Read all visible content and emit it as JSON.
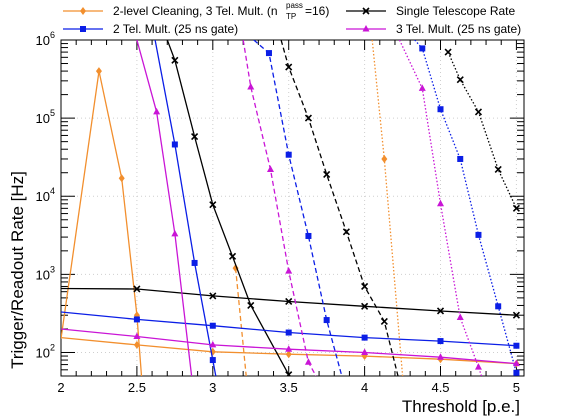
{
  "chart_data": {
    "type": "line",
    "title": "",
    "xlabel": "Threshold [p.e.]",
    "ylabel": "Trigger/Readout Rate [Hz]",
    "xlim": [
      2,
      5.05
    ],
    "ylim": [
      50,
      1000000
    ],
    "yscale": "log",
    "grid": true,
    "legend_position": "top",
    "x_tick_labels": [
      "2",
      "2.5",
      "3",
      "3.5",
      "4",
      "4.5",
      "5"
    ],
    "y_tick_labels": [
      {
        "base": "10",
        "exp": "2",
        "value": 100
      },
      {
        "base": "10",
        "exp": "3",
        "value": 1000
      },
      {
        "base": "10",
        "exp": "4",
        "value": 10000
      },
      {
        "base": "10",
        "exp": "5",
        "value": 100000
      },
      {
        "base": "10",
        "exp": "6",
        "value": 1000000
      }
    ],
    "legend": {
      "cleaning": {
        "prefix": "2-level Cleaning, 3 Tel. Mult. (n",
        "sup": "pass",
        "sub": "TP",
        "suffix": "=16)"
      },
      "single": "Single Telescope Rate",
      "two_tel": "2 Tel. Mult. (25 ns gate)",
      "three_tel": "3 Tel. Mult. (25 ns gate)"
    },
    "colors": {
      "cleaning": "#f28f2e",
      "single": "#000000",
      "two_tel": "#0b1ee6",
      "three_tel": "#c915d6"
    },
    "series": [
      {
        "key": "cleaning-solid",
        "color": "#f28f2e",
        "dash": "solid",
        "marker": "diamond",
        "x": [
          2.0,
          2.25,
          2.4,
          2.5,
          2.53
        ],
        "y": [
          150,
          400000,
          17000,
          300,
          50
        ]
      },
      {
        "key": "cleaning-dashed",
        "color": "#f28f2e",
        "dash": "dashed",
        "marker": "diamond",
        "x": [
          3.15,
          3.22
        ],
        "y": [
          1200,
          50
        ]
      },
      {
        "key": "cleaning-dotted",
        "color": "#f28f2e",
        "dash": "dotted",
        "marker": "diamond",
        "x": [
          4.05,
          4.13,
          4.25
        ],
        "y": [
          1000000,
          30000,
          50
        ]
      },
      {
        "key": "cleaning-flat",
        "color": "#f28f2e",
        "dash": "solid",
        "marker": "diamond",
        "x": [
          2.0,
          2.5,
          3.0,
          3.5,
          4.0,
          4.5,
          5.0
        ],
        "y": [
          155,
          125,
          102,
          95,
          90,
          82,
          72
        ]
      },
      {
        "key": "single-main",
        "color": "#000000",
        "dash": "solid",
        "marker": "cross",
        "x": [
          2.7,
          2.75,
          2.88,
          3.0,
          3.13,
          3.25,
          3.5
        ],
        "y": [
          1000000,
          550000,
          58000,
          7800,
          1700,
          400,
          52
        ]
      },
      {
        "key": "single-flat",
        "color": "#000000",
        "dash": "solid",
        "marker": "cross",
        "x": [
          2.0,
          2.5,
          3.0,
          3.5,
          4.0,
          4.5,
          5.0
        ],
        "y": [
          660,
          650,
          530,
          450,
          390,
          340,
          300
        ]
      },
      {
        "key": "single-dashed",
        "color": "#000000",
        "dash": "dashed",
        "marker": "cross",
        "x": [
          3.45,
          3.5,
          3.63,
          3.75,
          3.88,
          4.0,
          4.13,
          4.22
        ],
        "y": [
          1000000,
          450000,
          100000,
          19000,
          3500,
          700,
          250,
          50
        ]
      },
      {
        "key": "single-dotted",
        "color": "#000000",
        "dash": "dotted",
        "marker": "cross",
        "x": [
          4.55,
          4.63,
          4.75,
          4.88,
          5.0
        ],
        "y": [
          700000,
          310000,
          120000,
          22000,
          7000
        ]
      },
      {
        "key": "two-main",
        "color": "#0b1ee6",
        "dash": "solid",
        "marker": "square",
        "x": [
          2.62,
          2.75,
          2.88,
          3.0,
          3.02
        ],
        "y": [
          1000000,
          46000,
          1400,
          80,
          50
        ]
      },
      {
        "key": "two-flat",
        "color": "#0b1ee6",
        "dash": "solid",
        "marker": "square",
        "x": [
          2.0,
          2.5,
          3.0,
          3.5,
          4.0,
          4.5,
          5.0
        ],
        "y": [
          330,
          265,
          220,
          180,
          155,
          140,
          122
        ]
      },
      {
        "key": "two-dashed",
        "color": "#0b1ee6",
        "dash": "dashed",
        "marker": "square",
        "x": [
          3.27,
          3.37,
          3.5,
          3.63,
          3.75,
          3.85
        ],
        "y": [
          1000000,
          680000,
          34000,
          3100,
          260,
          50
        ]
      },
      {
        "key": "two-dotted",
        "color": "#0b1ee6",
        "dash": "dotted",
        "marker": "square",
        "x": [
          4.33,
          4.38,
          4.5,
          4.63,
          4.75,
          4.88,
          5.0
        ],
        "y": [
          1000000,
          780000,
          130000,
          30000,
          3200,
          390,
          55
        ]
      },
      {
        "key": "three-main",
        "color": "#c915d6",
        "dash": "solid",
        "marker": "triangle",
        "x": [
          2.5,
          2.63,
          2.75,
          2.86
        ],
        "y": [
          1000000,
          120000,
          3300,
          50
        ]
      },
      {
        "key": "three-dashed",
        "color": "#c915d6",
        "dash": "dashed",
        "marker": "triangle",
        "x": [
          3.2,
          3.25,
          3.38,
          3.5,
          3.63,
          3.68
        ],
        "y": [
          1000000,
          250000,
          22000,
          1100,
          75,
          50
        ]
      },
      {
        "key": "three-dotted",
        "color": "#c915d6",
        "dash": "dotted",
        "marker": "triangle",
        "x": [
          4.23,
          4.38,
          4.5,
          4.63,
          4.75,
          4.77
        ],
        "y": [
          1000000,
          240000,
          8000,
          280,
          65,
          50
        ]
      },
      {
        "key": "three-flat",
        "color": "#c915d6",
        "dash": "solid",
        "marker": "triangle",
        "x": [
          2.0,
          2.5,
          3.0,
          3.5,
          4.0,
          4.5,
          5.0
        ],
        "y": [
          200,
          160,
          125,
          110,
          100,
          87,
          72
        ]
      }
    ]
  }
}
